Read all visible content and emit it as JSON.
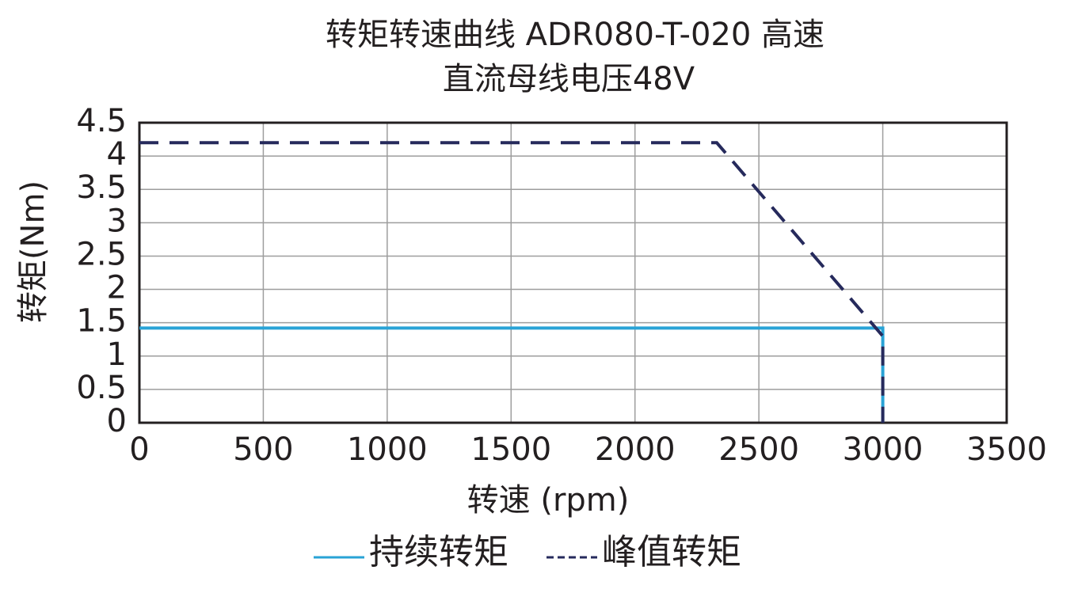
{
  "chart_data": {
    "type": "line",
    "title": [
      "转矩转速曲线 ADR080-T-020 高速",
      "直流母线电压48V"
    ],
    "x_label": "转速 (rpm)",
    "y_label": "转矩(Nm)",
    "series": [
      {
        "name": "持续转矩",
        "color": "#29a3d6",
        "dash": false,
        "x": [
          0,
          3000,
          3000
        ],
        "values": [
          1.42,
          1.42,
          0
        ]
      },
      {
        "name": "峰值转矩",
        "color": "#262a5c",
        "dash": true,
        "x": [
          0,
          2330,
          3000,
          3000
        ],
        "values": [
          4.2,
          4.2,
          1.3,
          0
        ]
      }
    ],
    "xlim": [
      0,
      3500
    ],
    "xticks": [
      0,
      500,
      1000,
      1500,
      2000,
      2500,
      3000,
      3500
    ],
    "ylim": [
      0,
      4.5
    ],
    "yticks": [
      0,
      0.5,
      1,
      1.5,
      2,
      2.5,
      3,
      3.5,
      4,
      4.5
    ],
    "grid": true,
    "legend": "bottom"
  }
}
